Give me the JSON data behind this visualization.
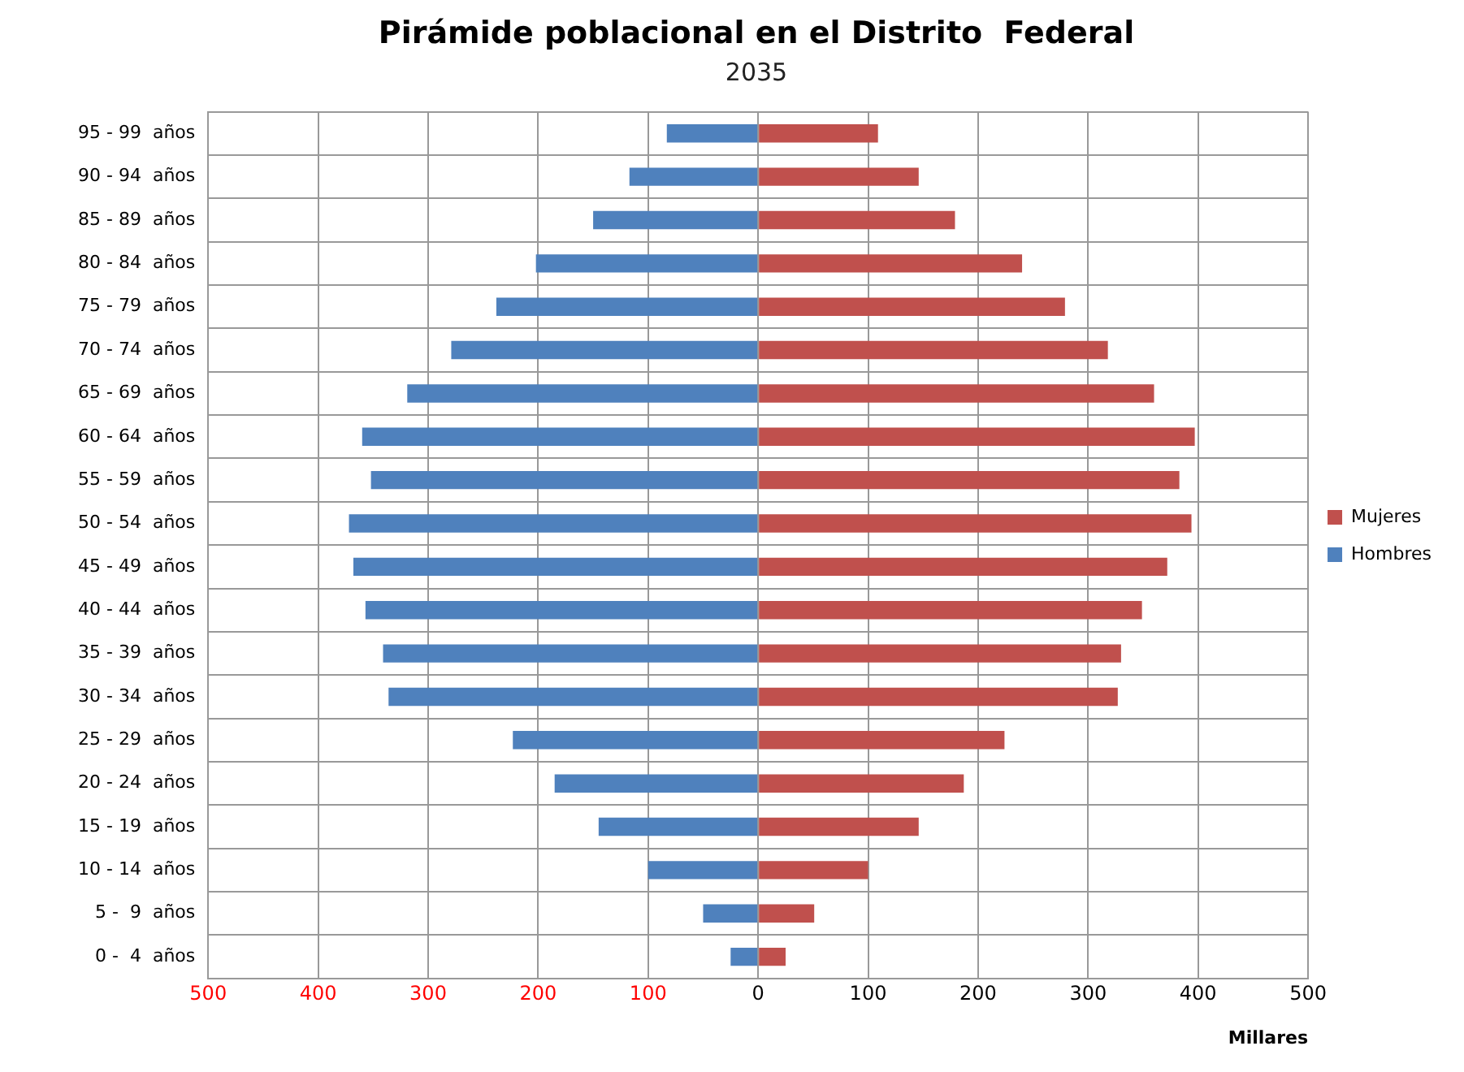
{
  "chart_data": {
    "type": "bar",
    "orientation": "horizontal",
    "stacked": true,
    "title": "Pirámide poblacional en el Distrito  Federal",
    "subtitle": "2035",
    "xlabel": "Millares",
    "categories": [
      "95 - 99  años",
      "90 - 94  años",
      "85 - 89  años",
      "80 - 84  años",
      "75 - 79  años",
      "70 - 74  años",
      "65 - 69  años",
      "60 - 64  años",
      "55 - 59  años",
      "50 - 54  años",
      "45 - 49  años",
      "40 - 44  años",
      "35 - 39  años",
      "30 - 34  años",
      "25 - 29  años",
      "20 - 24  años",
      "15 - 19  años",
      "10 - 14  años",
      "5 -  9  años",
      "0 -  4  años"
    ],
    "series": [
      {
        "name": "Mujeres",
        "color": "#c0504d",
        "values": [
          109,
          146,
          179,
          240,
          279,
          318,
          360,
          397,
          383,
          394,
          372,
          349,
          330,
          327,
          224,
          187,
          146,
          100,
          51,
          25
        ]
      },
      {
        "name": "Hombres",
        "color": "#4f81bd",
        "values": [
          -83,
          -117,
          -150,
          -202,
          -238,
          -279,
          -319,
          -360,
          -352,
          -372,
          -368,
          -357,
          -341,
          -336,
          -223,
          -185,
          -145,
          -100,
          -50,
          -25
        ]
      }
    ],
    "xlim": [
      -500,
      500
    ],
    "xticks": [
      {
        "value": -500,
        "label": "500"
      },
      {
        "value": -400,
        "label": "400"
      },
      {
        "value": -300,
        "label": "300"
      },
      {
        "value": -200,
        "label": "200"
      },
      {
        "value": -100,
        "label": "100"
      },
      0,
      100,
      200,
      300,
      400,
      500
    ],
    "grid": true,
    "legend": "right"
  }
}
